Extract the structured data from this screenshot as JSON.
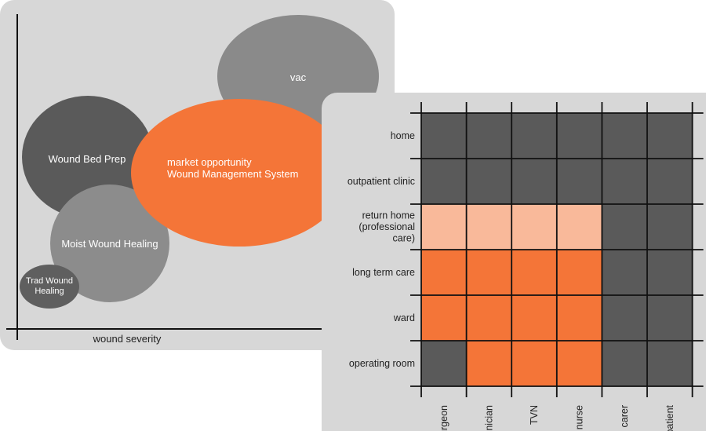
{
  "positioning_chart": {
    "x_axis_label": "wound severity",
    "bubbles": [
      {
        "id": "vac",
        "label": "vac",
        "color": "#8a8a8a"
      },
      {
        "id": "wound-bed-prep",
        "label": "Wound Bed Prep",
        "color": "#5a5a5a"
      },
      {
        "id": "moist-wound-healing",
        "label": "Moist Wound Healing",
        "color": "#8c8c8c"
      },
      {
        "id": "trad-wound-healing",
        "label": "Trad Wound Healing",
        "color": "#5f5f5f"
      },
      {
        "id": "market-opportunity",
        "label": "market opportunity",
        "label2": "Wound Management System",
        "color": "#f47538"
      }
    ]
  },
  "matrix": {
    "rows": [
      "home",
      "outpatient clinic",
      "return home (professional care)",
      "long term care",
      "ward",
      "operating room"
    ],
    "columns": [
      "surgeon",
      "clinician",
      "TVN",
      "nurse",
      "carer",
      "patient"
    ],
    "colors": {
      "dark": "#5a5a5a",
      "light": "#f9b99a",
      "orange": "#f47538"
    },
    "cells": [
      [
        "dark",
        "dark",
        "dark",
        "dark",
        "dark",
        "dark"
      ],
      [
        "dark",
        "dark",
        "dark",
        "dark",
        "dark",
        "dark"
      ],
      [
        "light",
        "light",
        "light",
        "light",
        "dark",
        "dark"
      ],
      [
        "orange",
        "orange",
        "orange",
        "orange",
        "dark",
        "dark"
      ],
      [
        "orange",
        "orange",
        "orange",
        "orange",
        "dark",
        "dark"
      ],
      [
        "dark",
        "orange",
        "orange",
        "orange",
        "dark",
        "dark"
      ]
    ]
  }
}
